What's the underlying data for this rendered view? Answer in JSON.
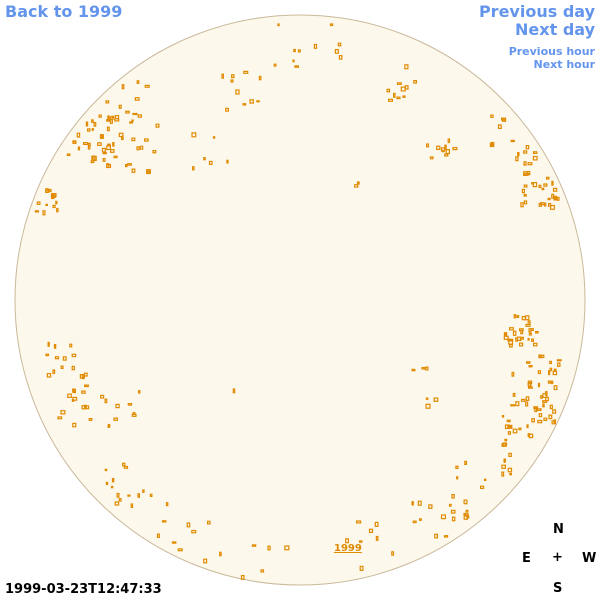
{
  "nav": {
    "back_label": "Back to 1999",
    "prev_day_label": "Previous day",
    "next_day_label": "Next day",
    "prev_hour_label": "Previous hour",
    "next_hour_label": "Next hour"
  },
  "image": {
    "timestamp": "1999-03-23T12:47:33",
    "year_label": "1999"
  },
  "compass": {
    "north": "N",
    "east": "E",
    "center": "+",
    "west": "W",
    "south": "S"
  },
  "colors": {
    "link": "#6495ed",
    "disk_fill": "#fdf8ec",
    "disk_edge": "#c9b99a",
    "contour": "#e08a00"
  }
}
